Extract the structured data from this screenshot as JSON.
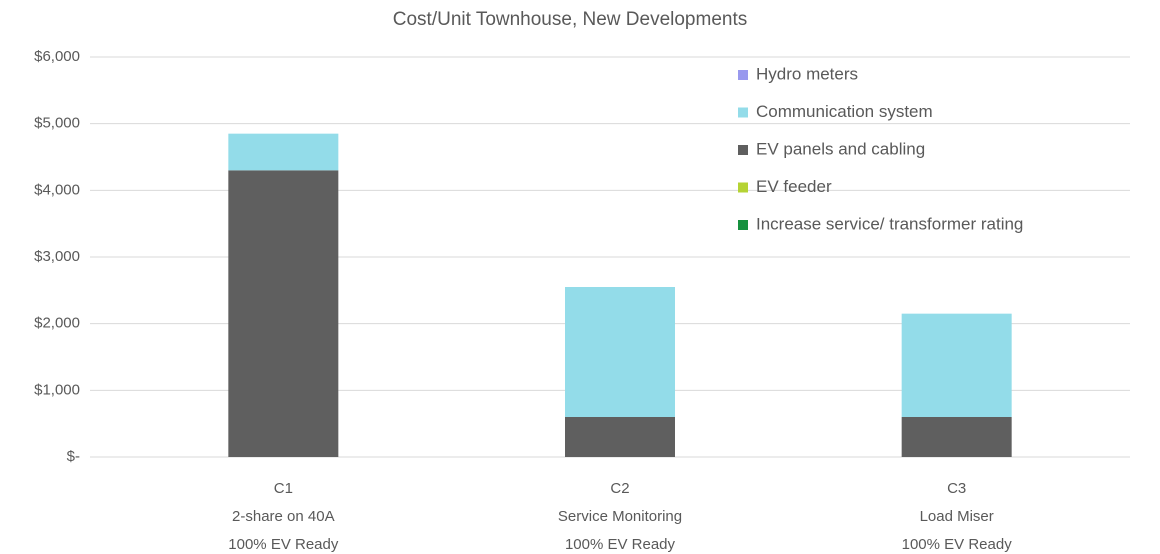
{
  "chart_data": {
    "type": "stacked_bar",
    "title": "Cost/Unit Townhouse, New Developments",
    "categories": [
      [
        "C1",
        "2-share on 40A",
        "100% EV Ready"
      ],
      [
        "C2",
        "Service Monitoring",
        "100% EV Ready"
      ],
      [
        "C3",
        "Load Miser",
        "100% EV Ready"
      ]
    ],
    "series": [
      {
        "name": "Increase service/ transformer rating",
        "color": "#16913f",
        "values": [
          0,
          0,
          0
        ]
      },
      {
        "name": "EV feeder",
        "color": "#b5d334",
        "values": [
          0,
          0,
          0
        ]
      },
      {
        "name": "EV panels and cabling",
        "color": "#5f5f5f",
        "values": [
          4300,
          600,
          600
        ]
      },
      {
        "name": "Communication system",
        "color": "#93dce9",
        "values": [
          550,
          1950,
          1550
        ]
      },
      {
        "name": "Hydro meters",
        "color": "#9999ee",
        "values": [
          0,
          0,
          0
        ]
      }
    ],
    "ylim": [
      0,
      6000
    ],
    "yticks": [
      {
        "value": 0,
        "label": "$-"
      },
      {
        "value": 1000,
        "label": "$1,000"
      },
      {
        "value": 2000,
        "label": "$2,000"
      },
      {
        "value": 3000,
        "label": "$3,000"
      },
      {
        "value": 4000,
        "label": "$4,000"
      },
      {
        "value": 5000,
        "label": "$5,000"
      },
      {
        "value": 6000,
        "label": "$6,000"
      }
    ],
    "grid": true,
    "legend": "top-right"
  }
}
